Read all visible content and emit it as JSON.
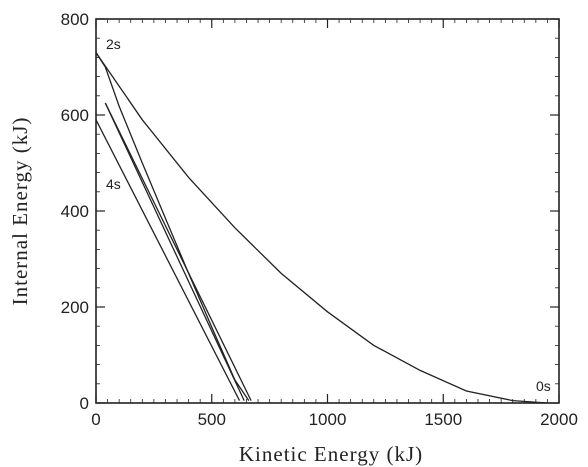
{
  "chart_data": {
    "type": "line",
    "xlabel": "Kinetic Energy (kJ)",
    "ylabel": "Internal Energy (kJ)",
    "xlim": [
      0,
      2000
    ],
    "ylim": [
      0,
      800
    ],
    "x_ticks": [
      0,
      500,
      1000,
      1500,
      2000
    ],
    "y_ticks": [
      0,
      200,
      400,
      600,
      800
    ],
    "x_tick_labels": [
      "0",
      "500",
      "1000",
      "1500",
      "2000"
    ],
    "y_tick_labels": [
      "0",
      "200",
      "400",
      "600",
      "800"
    ],
    "grid": false,
    "series": [
      {
        "x": [
          1950,
          1800,
          1600,
          1400,
          1200,
          1000,
          800,
          600,
          400,
          200,
          100,
          0
        ],
        "y": [
          0,
          5,
          25,
          68,
          120,
          190,
          270,
          365,
          470,
          590,
          660,
          730
        ]
      },
      {
        "x": [
          0,
          40,
          100,
          200,
          300,
          400,
          500,
          600,
          660
        ],
        "y": [
          730,
          700,
          618,
          500,
          385,
          270,
          158,
          48,
          5
        ]
      },
      {
        "x": [
          670,
          40
        ],
        "y": [
          5,
          625
        ]
      },
      {
        "x": [
          40,
          640
        ],
        "y": [
          625,
          5
        ]
      },
      {
        "x": [
          620,
          0
        ],
        "y": [
          5,
          590
        ]
      }
    ],
    "annotations": [
      {
        "text": "2s",
        "x": 0,
        "y": 730
      },
      {
        "text": "4s",
        "x": 0,
        "y": 470
      },
      {
        "text": "0s",
        "x": 1950,
        "y": 0
      }
    ]
  }
}
